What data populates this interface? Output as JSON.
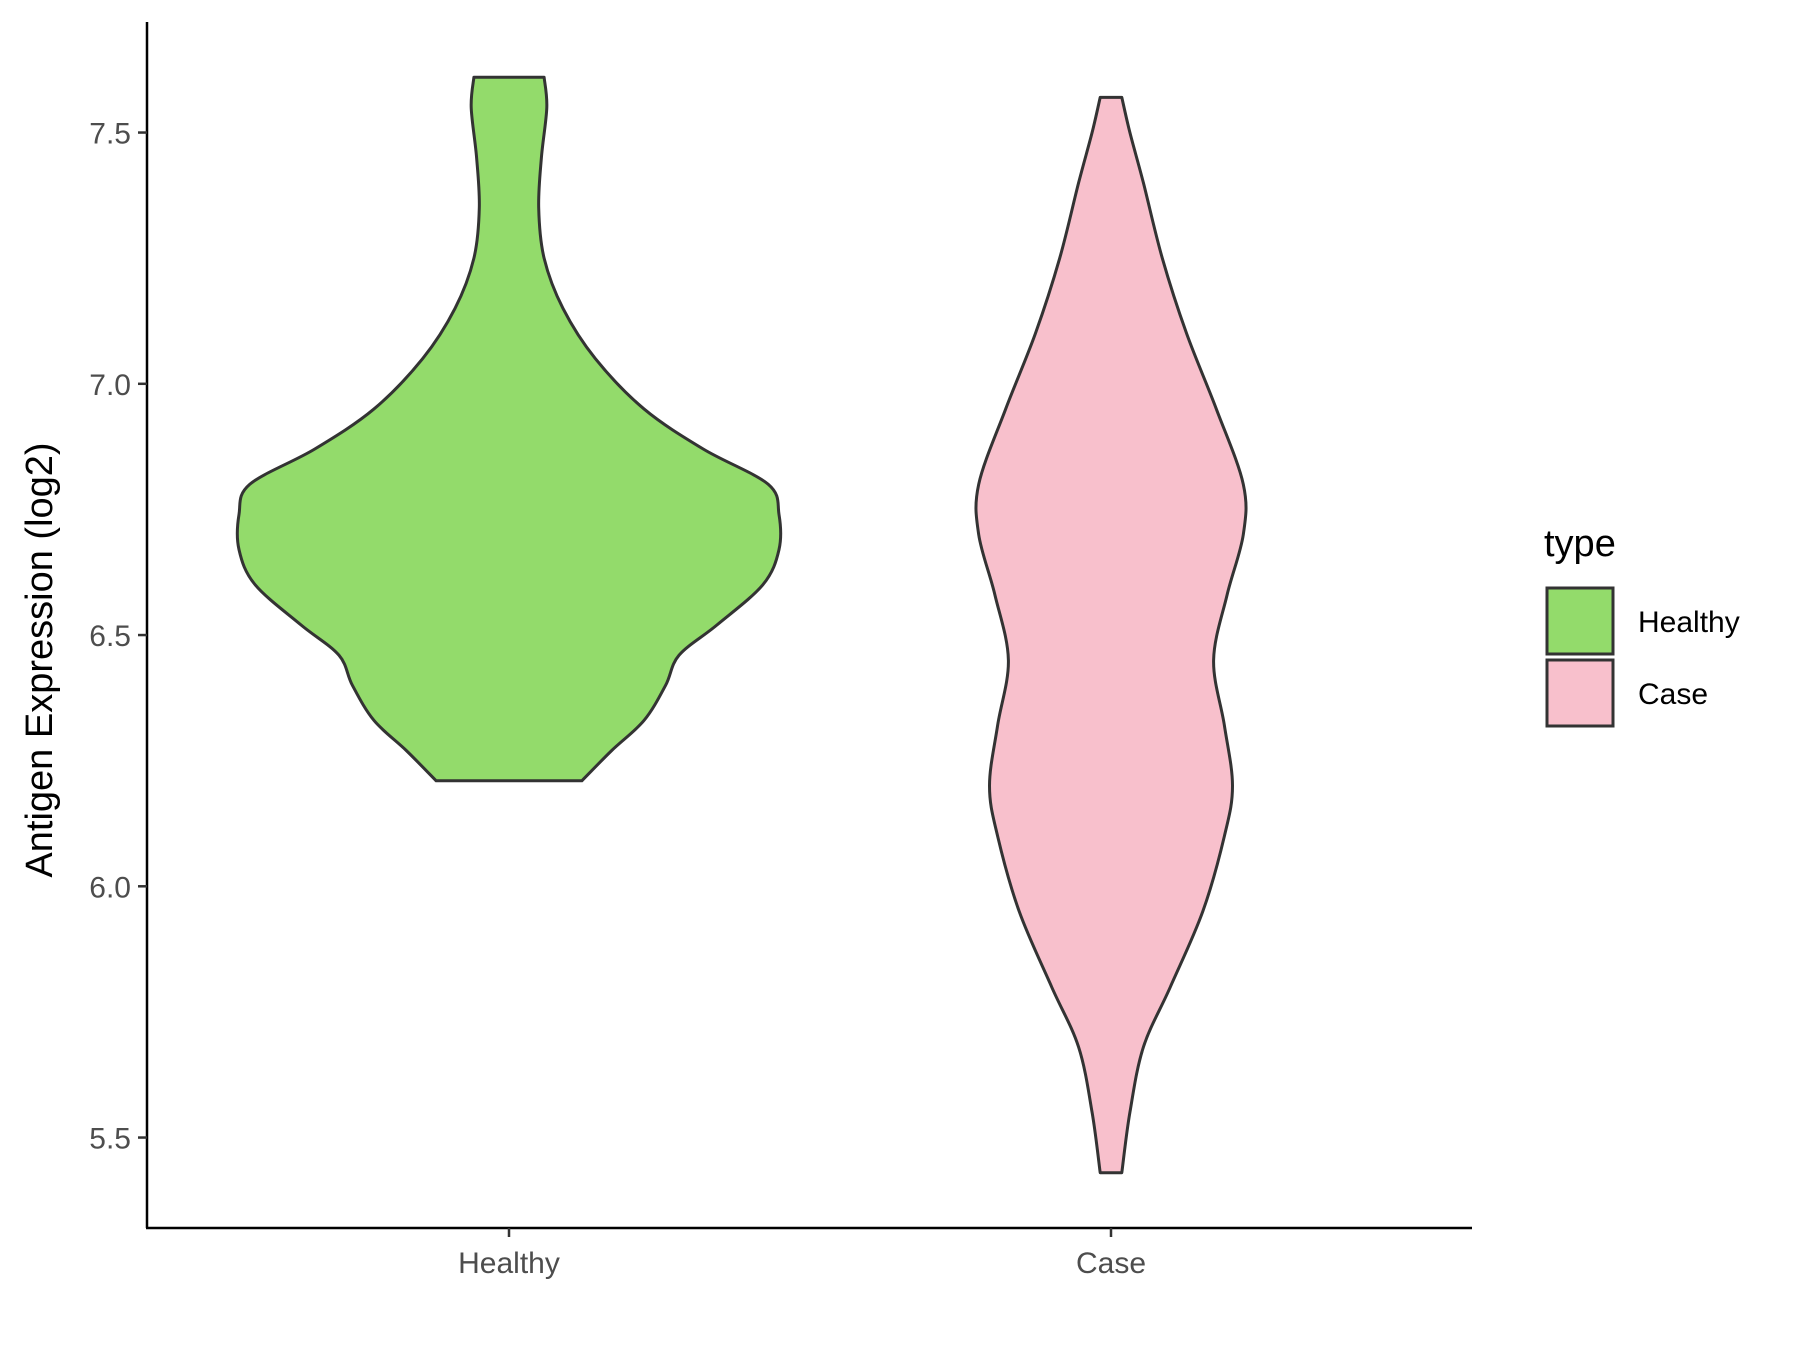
{
  "chart_data": {
    "type": "violin",
    "title": "",
    "xlabel": "",
    "ylabel": "Antigen Expression (log2)",
    "ylim": [
      5.32,
      7.72
    ],
    "yticks": [
      "5.5",
      "6.0",
      "6.5",
      "7.0",
      "7.5"
    ],
    "categories": [
      "Healthy",
      "Case"
    ],
    "grid": false,
    "legend": {
      "title": "type",
      "placement": "right",
      "entries": [
        "Healthy",
        "Case"
      ]
    },
    "series": [
      {
        "name": "Healthy",
        "color": "#93DB6B",
        "min": 6.21,
        "max": 7.61,
        "density": [
          [
            6.21,
            0.27
          ],
          [
            6.27,
            0.38
          ],
          [
            6.33,
            0.5
          ],
          [
            6.4,
            0.58
          ],
          [
            6.46,
            0.63
          ],
          [
            6.52,
            0.77
          ],
          [
            6.6,
            0.94
          ],
          [
            6.67,
            1.0
          ],
          [
            6.74,
            1.0
          ],
          [
            6.8,
            0.96
          ],
          [
            6.87,
            0.72
          ],
          [
            6.95,
            0.5
          ],
          [
            7.05,
            0.32
          ],
          [
            7.15,
            0.2
          ],
          [
            7.25,
            0.13
          ],
          [
            7.35,
            0.11
          ],
          [
            7.45,
            0.12
          ],
          [
            7.55,
            0.14
          ],
          [
            7.61,
            0.13
          ]
        ]
      },
      {
        "name": "Case",
        "color": "#F8C0CC",
        "min": 5.43,
        "max": 7.57,
        "density": [
          [
            5.43,
            0.04
          ],
          [
            5.55,
            0.07
          ],
          [
            5.68,
            0.12
          ],
          [
            5.8,
            0.22
          ],
          [
            5.95,
            0.34
          ],
          [
            6.1,
            0.42
          ],
          [
            6.2,
            0.45
          ],
          [
            6.32,
            0.42
          ],
          [
            6.45,
            0.38
          ],
          [
            6.58,
            0.43
          ],
          [
            6.7,
            0.49
          ],
          [
            6.8,
            0.49
          ],
          [
            6.95,
            0.39
          ],
          [
            7.1,
            0.28
          ],
          [
            7.25,
            0.19
          ],
          [
            7.4,
            0.12
          ],
          [
            7.5,
            0.07
          ],
          [
            7.57,
            0.04
          ]
        ]
      }
    ]
  }
}
